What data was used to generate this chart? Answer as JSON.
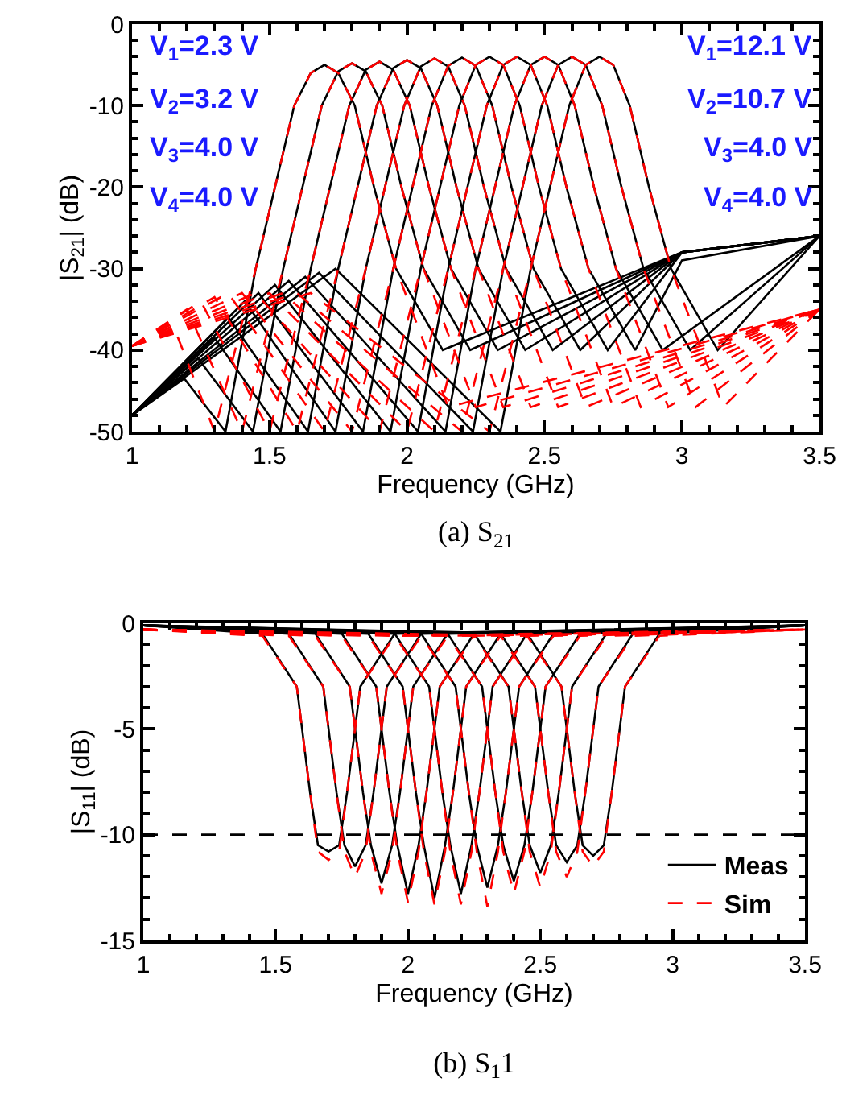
{
  "chart_data": [
    {
      "type": "line",
      "title": "(a) S$_{21}$",
      "xlabel": "Frequency (GHz)",
      "ylabel": "|S$_{21}$| (dB)",
      "annotations": [
        "V$_{1}$=2.3 V",
        "V$_{2}$=3.2 V",
        "V$_{3}$=4.0 V",
        "V$_{4}$=4.0 V",
        "V$_{1}$=12.1 V",
        "V$_{2}$=10.7 V",
        "V$_{3}$=4.0 V",
        "V$_{4}$=4.0 V"
      ],
      "xlim": [
        1,
        3.5
      ],
      "xticks": [
        1,
        1.5,
        2,
        2.5,
        3,
        3.5
      ],
      "ylim": [
        -50,
        0
      ],
      "yticks": [
        -50,
        -40,
        -30,
        -20,
        -10,
        0
      ],
      "grid": false,
      "legend": false,
      "series": [
        {
          "color": "#000000",
          "line_style": "solid",
          "x": [
            1.0,
            1.19,
            1.34,
            1.45,
            1.52,
            1.59,
            1.65,
            1.7,
            1.75,
            1.81,
            1.88,
            1.96,
            2.13,
            3.0,
            3.5
          ],
          "values": [
            -48,
            -43.5,
            -50,
            -30,
            -20,
            -10,
            -6,
            -5,
            -6,
            -10,
            -20,
            -30,
            -40,
            -28,
            -26
          ]
        },
        {
          "color": "#000000",
          "line_style": "solid",
          "x": [
            1.0,
            1.24,
            1.44,
            1.55,
            1.62,
            1.69,
            1.75,
            1.8,
            1.85,
            1.91,
            1.98,
            2.06,
            2.23,
            3.0,
            3.5
          ],
          "values": [
            -48,
            -41,
            -50,
            -30,
            -20,
            -10,
            -5.8,
            -4.8,
            -5.8,
            -10,
            -20,
            -30,
            -40,
            -28,
            -26
          ]
        },
        {
          "color": "#000000",
          "line_style": "solid",
          "x": [
            1.0,
            1.3,
            1.54,
            1.65,
            1.72,
            1.79,
            1.85,
            1.9,
            1.95,
            2.01,
            2.08,
            2.16,
            2.33,
            3.0,
            3.5
          ],
          "values": [
            -48,
            -38.5,
            -50,
            -30,
            -20,
            -10,
            -5.6,
            -4.6,
            -5.6,
            -10,
            -20,
            -30,
            -40,
            -28,
            -26
          ]
        },
        {
          "color": "#000000",
          "line_style": "solid",
          "x": [
            1.0,
            1.35,
            1.64,
            1.75,
            1.82,
            1.89,
            1.95,
            2.0,
            2.05,
            2.11,
            2.18,
            2.26,
            2.43,
            3.0,
            3.5
          ],
          "values": [
            -48,
            -36,
            -50,
            -30,
            -20,
            -10,
            -5.4,
            -4.4,
            -5.4,
            -10,
            -20,
            -30,
            -40,
            -28,
            -26
          ]
        },
        {
          "color": "#000000",
          "line_style": "solid",
          "x": [
            1.0,
            1.41,
            1.74,
            1.85,
            1.92,
            1.99,
            2.05,
            2.1,
            2.15,
            2.21,
            2.28,
            2.36,
            2.53,
            3.0,
            3.5
          ],
          "values": [
            -48,
            -34,
            -50,
            -30,
            -20,
            -10,
            -5.2,
            -4.2,
            -5.2,
            -10,
            -20,
            -30,
            -40,
            -28,
            -26
          ]
        },
        {
          "color": "#000000",
          "line_style": "solid",
          "x": [
            1.0,
            1.46,
            1.84,
            1.95,
            2.02,
            2.09,
            2.15,
            2.2,
            2.25,
            2.31,
            2.38,
            2.46,
            2.63,
            3.0,
            3.5
          ],
          "values": [
            -48,
            -33,
            -50,
            -30,
            -20,
            -10,
            -5.1,
            -4.1,
            -5.1,
            -10,
            -20,
            -30,
            -40,
            -28,
            -26
          ]
        },
        {
          "color": "#000000",
          "line_style": "solid",
          "x": [
            1.0,
            1.52,
            1.94,
            2.05,
            2.12,
            2.19,
            2.25,
            2.3,
            2.35,
            2.41,
            2.48,
            2.56,
            2.73,
            3.0,
            3.5
          ],
          "values": [
            -48,
            -32,
            -50,
            -30,
            -20,
            -10,
            -5,
            -4,
            -5,
            -10,
            -20,
            -30,
            -40,
            -28,
            -26
          ]
        },
        {
          "color": "#000000",
          "line_style": "solid",
          "x": [
            1.0,
            1.57,
            2.04,
            2.15,
            2.22,
            2.29,
            2.35,
            2.4,
            2.45,
            2.51,
            2.58,
            2.66,
            2.83,
            3.0,
            3.5
          ],
          "values": [
            -48,
            -31.5,
            -50,
            -30,
            -20,
            -10,
            -5,
            -4,
            -5,
            -10,
            -20,
            -30,
            -40,
            -29,
            -26
          ]
        },
        {
          "color": "#000000",
          "line_style": "solid",
          "x": [
            1.0,
            1.63,
            2.14,
            2.25,
            2.32,
            2.39,
            2.45,
            2.5,
            2.55,
            2.61,
            2.68,
            2.76,
            2.93,
            3.5
          ],
          "values": [
            -48,
            -31,
            -50,
            -30,
            -20,
            -10,
            -5,
            -4,
            -5,
            -10,
            -20,
            -30,
            -40,
            -26
          ]
        },
        {
          "color": "#000000",
          "line_style": "solid",
          "x": [
            1.0,
            1.68,
            2.24,
            2.35,
            2.42,
            2.49,
            2.55,
            2.6,
            2.65,
            2.71,
            2.78,
            2.86,
            3.03,
            3.5
          ],
          "values": [
            -48,
            -30.5,
            -50,
            -30,
            -20,
            -10,
            -5,
            -4,
            -5,
            -10,
            -20,
            -30,
            -40,
            -26
          ]
        },
        {
          "color": "#000000",
          "line_style": "solid",
          "x": [
            1.0,
            1.74,
            2.34,
            2.45,
            2.52,
            2.59,
            2.65,
            2.7,
            2.75,
            2.81,
            2.88,
            2.96,
            3.13,
            3.5
          ],
          "values": [
            -48,
            -30,
            -50,
            -30,
            -20,
            -10,
            -5,
            -4,
            -5,
            -10,
            -20,
            -30,
            -40,
            -26
          ]
        },
        {
          "color": "#ff0000",
          "line_style": "dashed",
          "x": [
            1.0,
            1.15,
            1.3,
            1.45,
            1.52,
            1.59,
            1.65,
            1.7,
            1.75,
            1.81,
            1.88,
            1.96,
            2.15,
            3.5
          ],
          "values": [
            -39.5,
            -37,
            -50,
            -30,
            -20,
            -10,
            -6,
            -5,
            -6,
            -10,
            -20,
            -30,
            -47,
            -35
          ]
        },
        {
          "color": "#ff0000",
          "line_style": "dashed",
          "x": [
            1.0,
            1.2,
            1.4,
            1.55,
            1.62,
            1.69,
            1.75,
            1.8,
            1.85,
            1.91,
            1.98,
            2.06,
            2.25,
            3.5
          ],
          "values": [
            -39.5,
            -35,
            -50,
            -30,
            -20,
            -10,
            -5.8,
            -4.8,
            -5.8,
            -10,
            -20,
            -30,
            -47,
            -35
          ]
        },
        {
          "color": "#ff0000",
          "line_style": "dashed",
          "x": [
            1.0,
            1.25,
            1.5,
            1.65,
            1.72,
            1.79,
            1.85,
            1.9,
            1.95,
            2.01,
            2.08,
            2.16,
            2.35,
            3.5
          ],
          "values": [
            -39.5,
            -34,
            -50,
            -30,
            -20,
            -10,
            -5.6,
            -4.6,
            -5.6,
            -10,
            -20,
            -30,
            -47,
            -35
          ]
        },
        {
          "color": "#ff0000",
          "line_style": "dashed",
          "x": [
            1.0,
            1.3,
            1.6,
            1.75,
            1.82,
            1.89,
            1.95,
            2.0,
            2.05,
            2.11,
            2.18,
            2.26,
            2.45,
            3.5
          ],
          "values": [
            -39.5,
            -33.5,
            -50,
            -30,
            -20,
            -10,
            -5.4,
            -4.4,
            -5.4,
            -10,
            -20,
            -30,
            -47,
            -35
          ]
        },
        {
          "color": "#ff0000",
          "line_style": "dashed",
          "x": [
            1.0,
            1.35,
            1.7,
            1.85,
            1.92,
            1.99,
            2.05,
            2.1,
            2.15,
            2.21,
            2.28,
            2.36,
            2.55,
            3.5
          ],
          "values": [
            -39.5,
            -33,
            -50,
            -30,
            -20,
            -10,
            -5.2,
            -4.2,
            -5.2,
            -10,
            -20,
            -30,
            -47,
            -35
          ]
        },
        {
          "color": "#ff0000",
          "line_style": "dashed",
          "x": [
            1.0,
            1.4,
            1.8,
            1.95,
            2.02,
            2.09,
            2.15,
            2.2,
            2.25,
            2.31,
            2.38,
            2.46,
            2.65,
            3.5
          ],
          "values": [
            -39.5,
            -33,
            -50,
            -30,
            -20,
            -10,
            -5.1,
            -4.1,
            -5.1,
            -10,
            -20,
            -30,
            -47,
            -35
          ]
        },
        {
          "color": "#ff0000",
          "line_style": "dashed",
          "x": [
            1.0,
            1.45,
            1.9,
            2.05,
            2.12,
            2.19,
            2.25,
            2.3,
            2.35,
            2.41,
            2.48,
            2.56,
            2.75,
            3.5
          ],
          "values": [
            -39.5,
            -33,
            -50,
            -30,
            -20,
            -10,
            -5,
            -4,
            -5,
            -10,
            -20,
            -30,
            -47,
            -35
          ]
        },
        {
          "color": "#ff0000",
          "line_style": "dashed",
          "x": [
            1.0,
            1.5,
            2.0,
            2.15,
            2.22,
            2.29,
            2.35,
            2.4,
            2.45,
            2.51,
            2.58,
            2.66,
            2.85,
            3.5
          ],
          "values": [
            -39.5,
            -33,
            -50,
            -30,
            -20,
            -10,
            -5,
            -4,
            -5,
            -10,
            -20,
            -30,
            -47,
            -35
          ]
        },
        {
          "color": "#ff0000",
          "line_style": "dashed",
          "x": [
            1.0,
            1.55,
            2.1,
            2.25,
            2.32,
            2.39,
            2.45,
            2.5,
            2.55,
            2.61,
            2.68,
            2.76,
            2.95,
            3.5
          ],
          "values": [
            -39.5,
            -33,
            -50,
            -30,
            -20,
            -10,
            -5,
            -4,
            -5,
            -10,
            -20,
            -30,
            -47,
            -35
          ]
        },
        {
          "color": "#ff0000",
          "line_style": "dashed",
          "x": [
            1.0,
            1.6,
            2.2,
            2.35,
            2.42,
            2.49,
            2.55,
            2.6,
            2.65,
            2.71,
            2.78,
            2.86,
            3.05,
            3.5
          ],
          "values": [
            -39.5,
            -33,
            -50,
            -30,
            -20,
            -10,
            -5,
            -4,
            -5,
            -10,
            -20,
            -30,
            -47,
            -35
          ]
        },
        {
          "color": "#ff0000",
          "line_style": "dashed",
          "x": [
            1.0,
            1.65,
            2.3,
            2.45,
            2.52,
            2.59,
            2.65,
            2.7,
            2.75,
            2.81,
            2.88,
            2.96,
            3.15,
            3.5
          ],
          "values": [
            -39.5,
            -33,
            -50,
            -30,
            -20,
            -10,
            -5,
            -4,
            -5,
            -10,
            -20,
            -30,
            -47,
            -35
          ]
        }
      ]
    },
    {
      "type": "line",
      "title": "(b) S$_{1}$1",
      "xlabel": "Frequency (GHz)",
      "ylabel": "|S$_{11}$| (dB)",
      "xlim": [
        1,
        3.5
      ],
      "xticks": [
        1,
        1.5,
        2,
        2.5,
        3,
        3.5
      ],
      "ylim": [
        -15,
        0
      ],
      "yticks": [
        -15,
        -10,
        -5,
        0
      ],
      "grid": false,
      "legend": "bottom right",
      "ref_lines": [
        {
          "axis": "y",
          "value": -10,
          "color": "#000000",
          "line_style": "dashed"
        }
      ],
      "series": [
        {
          "name": "Meas",
          "color": "#000000",
          "line_style": "solid",
          "x": [
            1.0,
            1.45,
            1.58,
            1.63,
            1.66,
            1.7,
            1.74,
            1.77,
            1.82,
            1.95,
            3.5
          ],
          "values": [
            -0.1,
            -0.5,
            -3,
            -8,
            -10.5,
            -10.8,
            -10.5,
            -8,
            -3,
            -0.5,
            -0.1
          ]
        },
        {
          "color": "#000000",
          "line_style": "solid",
          "x": [
            1.0,
            1.55,
            1.68,
            1.73,
            1.76,
            1.8,
            1.84,
            1.87,
            1.92,
            2.05,
            3.5
          ],
          "values": [
            -0.1,
            -0.5,
            -3,
            -8,
            -10.5,
            -11.5,
            -10.5,
            -8,
            -3,
            -0.5,
            -0.1
          ]
        },
        {
          "color": "#000000",
          "line_style": "solid",
          "x": [
            1.0,
            1.65,
            1.78,
            1.83,
            1.86,
            1.9,
            1.94,
            1.97,
            2.02,
            2.15,
            3.5
          ],
          "values": [
            -0.1,
            -0.5,
            -3,
            -8,
            -10.5,
            -12.3,
            -10.5,
            -8,
            -3,
            -0.5,
            -0.1
          ]
        },
        {
          "color": "#000000",
          "line_style": "solid",
          "x": [
            1.0,
            1.75,
            1.88,
            1.93,
            1.96,
            2.0,
            2.04,
            2.07,
            2.12,
            2.25,
            3.5
          ],
          "values": [
            -0.1,
            -0.5,
            -3,
            -8,
            -10.5,
            -12.8,
            -10.5,
            -8,
            -3,
            -0.5,
            -0.1
          ]
        },
        {
          "color": "#000000",
          "line_style": "solid",
          "x": [
            1.0,
            1.85,
            1.98,
            2.03,
            2.06,
            2.1,
            2.14,
            2.17,
            2.22,
            2.35,
            3.5
          ],
          "values": [
            -0.1,
            -0.5,
            -3,
            -8,
            -10.5,
            -13,
            -10.5,
            -8,
            -3,
            -0.5,
            -0.1
          ]
        },
        {
          "color": "#000000",
          "line_style": "solid",
          "x": [
            1.0,
            1.95,
            2.08,
            2.13,
            2.16,
            2.2,
            2.24,
            2.27,
            2.32,
            2.45,
            3.5
          ],
          "values": [
            -0.1,
            -0.5,
            -3,
            -8,
            -10.5,
            -12.8,
            -10.5,
            -8,
            -3,
            -0.5,
            -0.1
          ]
        },
        {
          "color": "#000000",
          "line_style": "solid",
          "x": [
            1.0,
            2.05,
            2.18,
            2.23,
            2.26,
            2.3,
            2.34,
            2.37,
            2.42,
            2.55,
            3.5
          ],
          "values": [
            -0.1,
            -0.5,
            -3,
            -8,
            -10.5,
            -12.5,
            -10.5,
            -8,
            -3,
            -0.5,
            -0.1
          ]
        },
        {
          "color": "#000000",
          "line_style": "solid",
          "x": [
            1.0,
            2.15,
            2.28,
            2.33,
            2.36,
            2.4,
            2.44,
            2.47,
            2.52,
            2.65,
            3.5
          ],
          "values": [
            -0.1,
            -0.5,
            -3,
            -8,
            -10.5,
            -12.2,
            -10.5,
            -8,
            -3,
            -0.5,
            -0.1
          ]
        },
        {
          "color": "#000000",
          "line_style": "solid",
          "x": [
            1.0,
            2.25,
            2.38,
            2.43,
            2.46,
            2.5,
            2.54,
            2.57,
            2.62,
            2.75,
            3.5
          ],
          "values": [
            -0.1,
            -0.5,
            -3,
            -8,
            -10.5,
            -11.8,
            -10.5,
            -8,
            -3,
            -0.5,
            -0.1
          ]
        },
        {
          "color": "#000000",
          "line_style": "solid",
          "x": [
            1.0,
            2.35,
            2.48,
            2.53,
            2.56,
            2.6,
            2.64,
            2.67,
            2.72,
            2.85,
            3.5
          ],
          "values": [
            -0.1,
            -0.5,
            -3,
            -8,
            -10.5,
            -11.3,
            -10.5,
            -8,
            -3,
            -0.5,
            -0.1
          ]
        },
        {
          "color": "#000000",
          "line_style": "solid",
          "x": [
            1.0,
            2.45,
            2.58,
            2.63,
            2.66,
            2.7,
            2.74,
            2.77,
            2.82,
            2.95,
            3.5
          ],
          "values": [
            -0.1,
            -0.5,
            -3,
            -8,
            -10.5,
            -11,
            -10.5,
            -8,
            -3,
            -0.5,
            -0.1
          ]
        },
        {
          "name": "Sim",
          "color": "#ff0000",
          "line_style": "dashed",
          "x": [
            1.0,
            1.45,
            1.58,
            1.63,
            1.66,
            1.7,
            1.74,
            1.77,
            1.82,
            1.95,
            3.5
          ],
          "values": [
            -0.3,
            -0.6,
            -3,
            -8,
            -10.8,
            -11.2,
            -10.8,
            -8,
            -3,
            -0.6,
            -0.3
          ]
        },
        {
          "color": "#ff0000",
          "line_style": "dashed",
          "x": [
            1.0,
            1.55,
            1.68,
            1.73,
            1.76,
            1.8,
            1.84,
            1.87,
            1.92,
            2.05,
            3.5
          ],
          "values": [
            -0.3,
            -0.6,
            -3,
            -8,
            -10.8,
            -12,
            -10.8,
            -8,
            -3,
            -0.6,
            -0.3
          ]
        },
        {
          "color": "#ff0000",
          "line_style": "dashed",
          "x": [
            1.0,
            1.65,
            1.78,
            1.83,
            1.86,
            1.9,
            1.94,
            1.97,
            2.02,
            2.15,
            3.5
          ],
          "values": [
            -0.3,
            -0.6,
            -3,
            -8,
            -10.8,
            -12.8,
            -10.8,
            -8,
            -3,
            -0.6,
            -0.3
          ]
        },
        {
          "color": "#ff0000",
          "line_style": "dashed",
          "x": [
            1.0,
            1.75,
            1.88,
            1.93,
            1.96,
            2.0,
            2.04,
            2.07,
            2.12,
            2.25,
            3.5
          ],
          "values": [
            -0.3,
            -0.6,
            -3,
            -8,
            -10.8,
            -13.2,
            -10.8,
            -8,
            -3,
            -0.6,
            -0.3
          ]
        },
        {
          "color": "#ff0000",
          "line_style": "dashed",
          "x": [
            1.0,
            1.85,
            1.98,
            2.03,
            2.06,
            2.1,
            2.14,
            2.17,
            2.22,
            2.35,
            3.5
          ],
          "values": [
            -0.3,
            -0.6,
            -3,
            -8,
            -10.8,
            -13.3,
            -10.8,
            -8,
            -3,
            -0.6,
            -0.3
          ]
        },
        {
          "color": "#ff0000",
          "line_style": "dashed",
          "x": [
            1.0,
            1.95,
            2.08,
            2.13,
            2.16,
            2.2,
            2.24,
            2.27,
            2.32,
            2.45,
            3.5
          ],
          "values": [
            -0.3,
            -0.6,
            -3,
            -8,
            -10.8,
            -13.3,
            -10.8,
            -8,
            -3,
            -0.6,
            -0.3
          ]
        },
        {
          "color": "#ff0000",
          "line_style": "dashed",
          "x": [
            1.0,
            2.05,
            2.18,
            2.23,
            2.26,
            2.3,
            2.34,
            2.37,
            2.42,
            2.55,
            3.5
          ],
          "values": [
            -0.3,
            -0.6,
            -3,
            -8,
            -10.8,
            -13.4,
            -10.8,
            -8,
            -3,
            -0.6,
            -0.3
          ]
        },
        {
          "color": "#ff0000",
          "line_style": "dashed",
          "x": [
            1.0,
            2.15,
            2.28,
            2.33,
            2.36,
            2.4,
            2.44,
            2.47,
            2.52,
            2.65,
            3.5
          ],
          "values": [
            -0.3,
            -0.6,
            -3,
            -8,
            -10.8,
            -12.8,
            -10.8,
            -8,
            -3,
            -0.6,
            -0.3
          ]
        },
        {
          "color": "#ff0000",
          "line_style": "dashed",
          "x": [
            1.0,
            2.25,
            2.38,
            2.43,
            2.46,
            2.5,
            2.54,
            2.57,
            2.62,
            2.75,
            3.5
          ],
          "values": [
            -0.3,
            -0.6,
            -3,
            -8,
            -10.8,
            -12.5,
            -10.8,
            -8,
            -3,
            -0.6,
            -0.3
          ]
        },
        {
          "color": "#ff0000",
          "line_style": "dashed",
          "x": [
            1.0,
            2.35,
            2.48,
            2.53,
            2.56,
            2.6,
            2.64,
            2.67,
            2.72,
            2.85,
            3.5
          ],
          "values": [
            -0.3,
            -0.6,
            -3,
            -8,
            -10.8,
            -12,
            -10.8,
            -8,
            -3,
            -0.6,
            -0.3
          ]
        },
        {
          "color": "#ff0000",
          "line_style": "dashed",
          "x": [
            1.0,
            2.45,
            2.58,
            2.63,
            2.66,
            2.7,
            2.74,
            2.77,
            2.82,
            2.95,
            3.5
          ],
          "values": [
            -0.3,
            -0.6,
            -3,
            -8,
            -10.8,
            -11.5,
            -10.8,
            -8,
            -3,
            -0.6,
            -0.3
          ]
        }
      ]
    }
  ]
}
